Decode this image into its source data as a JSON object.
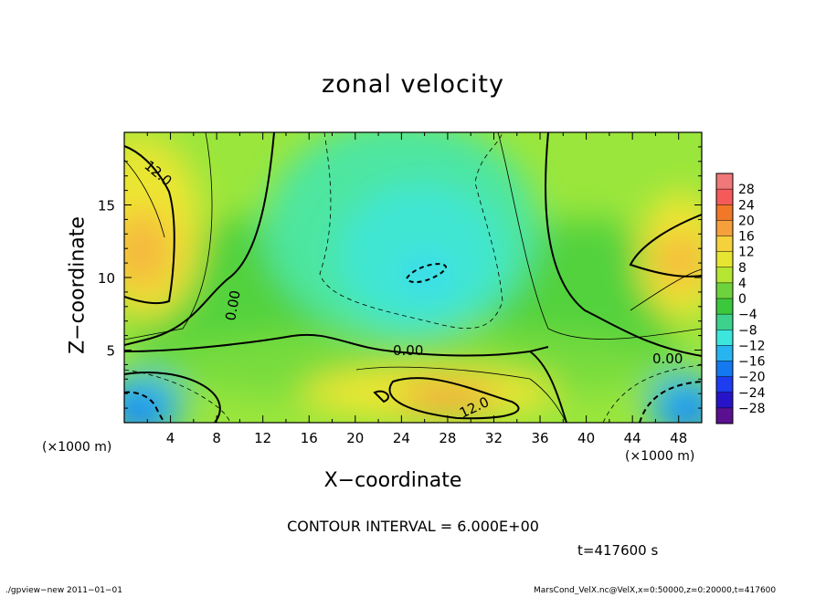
{
  "chart_data": {
    "type": "heatmap",
    "title": "zonal velocity",
    "xlabel": "X−coordinate",
    "ylabel": "Z−coordinate",
    "x_unit": "(×1000 m)",
    "x_range": [
      0,
      50
    ],
    "y_range": [
      0,
      20
    ],
    "x_ticks": [
      "4",
      "8",
      "12",
      "16",
      "20",
      "24",
      "28",
      "32",
      "36",
      "40",
      "44",
      "48"
    ],
    "y_ticks": [
      "5",
      "10",
      "15"
    ],
    "colorbar": {
      "range": [
        -30,
        30
      ],
      "labels": [
        "28",
        "24",
        "20",
        "16",
        "12",
        "8",
        "4",
        "0",
        "−4",
        "−8",
        "−12",
        "−16",
        "−20",
        "−24",
        "−28"
      ]
    },
    "contour_labels": [
      "12.0",
      "0.00",
      "0.00",
      "0.00",
      "12.0",
      "0.00"
    ],
    "contour_interval": "CONTOUR INTERVAL = 6.000E+00",
    "time": "t=417600 s",
    "features": [
      {
        "x": 2,
        "z": 12,
        "value": 16
      },
      {
        "x": 1,
        "z": 1.5,
        "value": -16
      },
      {
        "x": 26,
        "z": 10.5,
        "value": -12
      },
      {
        "x": 27,
        "z": 2,
        "value": 16
      },
      {
        "x": 48,
        "z": 11,
        "value": 16
      },
      {
        "x": 48,
        "z": 1.5,
        "value": -16
      }
    ]
  },
  "footer": {
    "left": "./gpview−new   2011−01−01",
    "right": "MarsCond_VelX.nc@VelX,x=0:50000,z=0:20000,t=417600"
  },
  "colors": {
    "negative_max": "#5a1090",
    "zero": "#3cc83c",
    "positive_max": "#f07878"
  }
}
